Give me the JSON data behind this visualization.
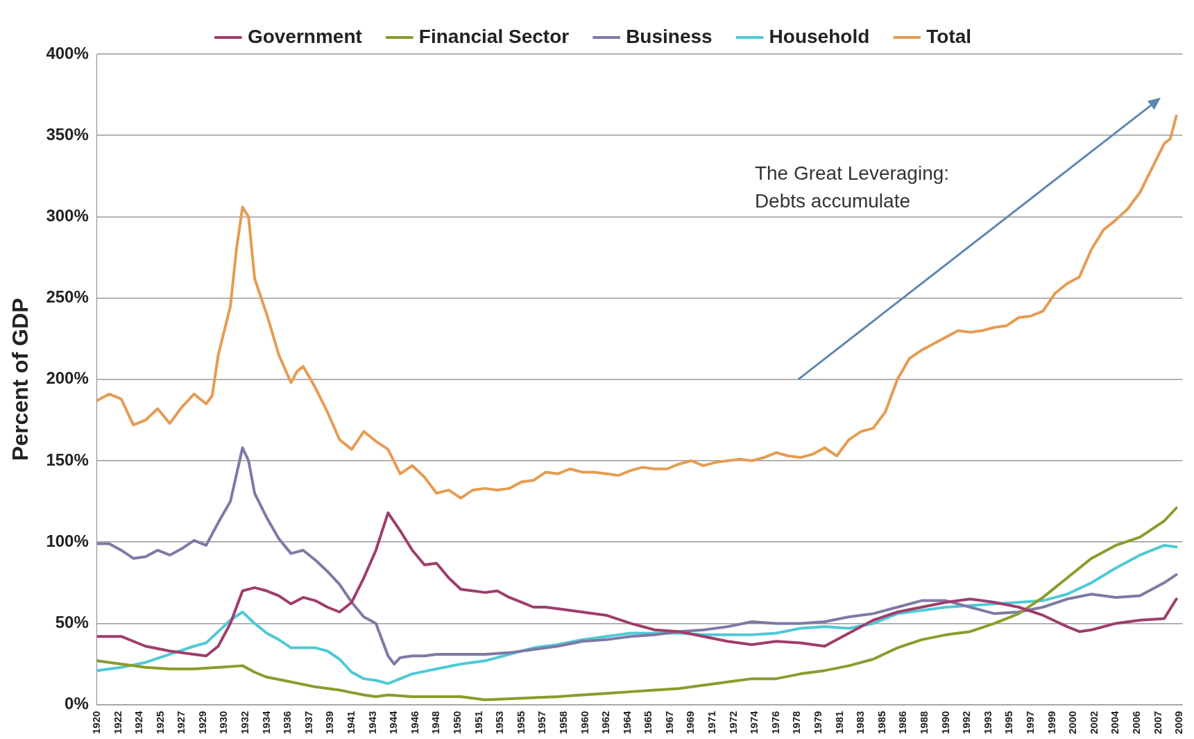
{
  "chart_data": {
    "type": "line",
    "ylabel": "Percent of GDP",
    "legend": "top",
    "grid": "y",
    "annotations": [
      "The Great Leveraging:\nDebts accumulate"
    ],
    "xlim": [
      1920,
      2009.5
    ],
    "xticks": [
      {
        "value": 1920,
        "label": "1920"
      },
      {
        "value": 1921.75,
        "label": "1922"
      },
      {
        "value": 1923.5,
        "label": "1924"
      },
      {
        "value": 1925.25,
        "label": "1925"
      },
      {
        "value": 1927,
        "label": "1927"
      },
      {
        "value": 1928.75,
        "label": "1929"
      },
      {
        "value": 1930.5,
        "label": "1930"
      },
      {
        "value": 1932.25,
        "label": "1932"
      },
      {
        "value": 1934,
        "label": "1934"
      },
      {
        "value": 1935.75,
        "label": "1936"
      },
      {
        "value": 1937.5,
        "label": "1937"
      },
      {
        "value": 1939.25,
        "label": "1939"
      },
      {
        "value": 1941,
        "label": "1941"
      },
      {
        "value": 1942.75,
        "label": "1943"
      },
      {
        "value": 1944.5,
        "label": "1944"
      },
      {
        "value": 1946.25,
        "label": "1946"
      },
      {
        "value": 1948,
        "label": "1948"
      },
      {
        "value": 1949.75,
        "label": "1950"
      },
      {
        "value": 1951.5,
        "label": "1951"
      },
      {
        "value": 1953.25,
        "label": "1953"
      },
      {
        "value": 1955,
        "label": "1955"
      },
      {
        "value": 1956.75,
        "label": "1957"
      },
      {
        "value": 1958.5,
        "label": "1958"
      },
      {
        "value": 1960.25,
        "label": "1960"
      },
      {
        "value": 1962,
        "label": "1962"
      },
      {
        "value": 1963.75,
        "label": "1964"
      },
      {
        "value": 1965.5,
        "label": "1965"
      },
      {
        "value": 1967.25,
        "label": "1967"
      },
      {
        "value": 1969,
        "label": "1969"
      },
      {
        "value": 1970.75,
        "label": "1971"
      },
      {
        "value": 1972.5,
        "label": "1972"
      },
      {
        "value": 1974.25,
        "label": "1974"
      },
      {
        "value": 1976,
        "label": "1976"
      },
      {
        "value": 1977.75,
        "label": "1978"
      },
      {
        "value": 1979.5,
        "label": "1979"
      },
      {
        "value": 1981.25,
        "label": "1981"
      },
      {
        "value": 1983,
        "label": "1983"
      },
      {
        "value": 1984.75,
        "label": "1985"
      },
      {
        "value": 1986.5,
        "label": "1986"
      },
      {
        "value": 1988.25,
        "label": "1988"
      },
      {
        "value": 1990,
        "label": "1990"
      },
      {
        "value": 1991.75,
        "label": "1992"
      },
      {
        "value": 1993.5,
        "label": "1993"
      },
      {
        "value": 1995.25,
        "label": "1995"
      },
      {
        "value": 1997,
        "label": "1997"
      },
      {
        "value": 1998.75,
        "label": "1999"
      },
      {
        "value": 2000.5,
        "label": "2000"
      },
      {
        "value": 2002.25,
        "label": "2002"
      },
      {
        "value": 2004,
        "label": "2004"
      },
      {
        "value": 2005.75,
        "label": "2006"
      },
      {
        "value": 2007.5,
        "label": "2007"
      },
      {
        "value": 2009.25,
        "label": "2009"
      }
    ],
    "ylim": [
      0,
      400
    ],
    "yticks": [
      {
        "value": 0,
        "label": "0%"
      },
      {
        "value": 50,
        "label": "50%"
      },
      {
        "value": 100,
        "label": "100%"
      },
      {
        "value": 150,
        "label": "150%"
      },
      {
        "value": 200,
        "label": "200%"
      },
      {
        "value": 250,
        "label": "250%"
      },
      {
        "value": 300,
        "label": "300%"
      },
      {
        "value": 350,
        "label": "350%"
      },
      {
        "value": 400,
        "label": "400%"
      }
    ],
    "series": [
      {
        "name": "Government",
        "color": "#9e3d6c",
        "x": [
          1920,
          1922,
          1924,
          1926,
          1928,
          1929,
          1930,
          1931,
          1932,
          1933,
          1934,
          1935,
          1936,
          1937,
          1938,
          1939,
          1940,
          1941,
          1942,
          1943,
          1944,
          1945,
          1946,
          1947,
          1948,
          1949,
          1950,
          1951,
          1952,
          1953,
          1954,
          1955,
          1956,
          1957,
          1958,
          1960,
          1962,
          1964,
          1966,
          1968,
          1970,
          1972,
          1974,
          1976,
          1978,
          1980,
          1982,
          1984,
          1986,
          1988,
          1990,
          1992,
          1994,
          1996,
          1998,
          2000,
          2001,
          2002,
          2004,
          2006,
          2008,
          2009
        ],
        "values": [
          42,
          42,
          36,
          33,
          31,
          30,
          36,
          50,
          70,
          72,
          70,
          67,
          62,
          66,
          64,
          60,
          57,
          63,
          78,
          95,
          118,
          107,
          95,
          86,
          87,
          78,
          71,
          70,
          69,
          70,
          66,
          63,
          60,
          60,
          59,
          57,
          55,
          50,
          46,
          45,
          42,
          39,
          37,
          39,
          38,
          36,
          44,
          52,
          57,
          60,
          63,
          65,
          63,
          60,
          55,
          48,
          45,
          46,
          50,
          52,
          53,
          65
        ]
      },
      {
        "name": "Financial Sector",
        "color": "#8c9b2c",
        "x": [
          1920,
          1922,
          1924,
          1926,
          1928,
          1930,
          1932,
          1933,
          1934,
          1936,
          1938,
          1940,
          1942,
          1943,
          1944,
          1946,
          1948,
          1950,
          1951,
          1952,
          1955,
          1958,
          1960,
          1962,
          1964,
          1966,
          1968,
          1970,
          1972,
          1974,
          1976,
          1978,
          1980,
          1982,
          1984,
          1986,
          1988,
          1990,
          1992,
          1994,
          1996,
          1998,
          2000,
          2002,
          2004,
          2006,
          2008,
          2009
        ],
        "values": [
          27,
          25,
          23,
          22,
          22,
          23,
          24,
          20,
          17,
          14,
          11,
          9,
          6,
          5,
          6,
          5,
          5,
          5,
          4,
          3,
          4,
          5,
          6,
          7,
          8,
          9,
          10,
          12,
          14,
          16,
          16,
          19,
          21,
          24,
          28,
          35,
          40,
          43,
          45,
          50,
          56,
          66,
          78,
          90,
          98,
          103,
          113,
          121
        ]
      },
      {
        "name": "Business",
        "color": "#7c7aa5",
        "x": [
          1920,
          1921,
          1922,
          1923,
          1924,
          1925,
          1926,
          1927,
          1928,
          1929,
          1930,
          1931,
          1932,
          1932.5,
          1933,
          1934,
          1935,
          1936,
          1937,
          1938,
          1939,
          1940,
          1941,
          1942,
          1943,
          1944,
          1944.5,
          1945,
          1946,
          1947,
          1948,
          1950,
          1952,
          1954,
          1956,
          1958,
          1960,
          1962,
          1964,
          1966,
          1968,
          1970,
          1972,
          1974,
          1976,
          1978,
          1980,
          1982,
          1984,
          1986,
          1988,
          1990,
          1992,
          1994,
          1996,
          1998,
          2000,
          2002,
          2004,
          2006,
          2008,
          2009
        ],
        "values": [
          99,
          99,
          95,
          90,
          91,
          95,
          92,
          96,
          101,
          98,
          112,
          125,
          158,
          150,
          130,
          115,
          102,
          93,
          95,
          89,
          82,
          74,
          63,
          54,
          50,
          30,
          25,
          29,
          30,
          30,
          31,
          31,
          31,
          32,
          34,
          36,
          39,
          40,
          42,
          43,
          45,
          46,
          48,
          51,
          50,
          50,
          51,
          54,
          56,
          60,
          64,
          64,
          60,
          56,
          57,
          60,
          65,
          68,
          66,
          67,
          75,
          80
        ]
      },
      {
        "name": "Household",
        "color": "#4fc9d6",
        "x": [
          1920,
          1922,
          1924,
          1926,
          1928,
          1929,
          1930,
          1931,
          1932,
          1933,
          1934,
          1935,
          1936,
          1937,
          1938,
          1939,
          1940,
          1941,
          1942,
          1943,
          1944,
          1945,
          1946,
          1948,
          1950,
          1952,
          1954,
          1956,
          1958,
          1960,
          1962,
          1964,
          1966,
          1968,
          1970,
          1972,
          1974,
          1976,
          1978,
          1980,
          1982,
          1984,
          1986,
          1988,
          1990,
          1992,
          1994,
          1996,
          1998,
          2000,
          2002,
          2004,
          2006,
          2008,
          2009
        ],
        "values": [
          21,
          23,
          26,
          31,
          36,
          38,
          45,
          52,
          57,
          50,
          44,
          40,
          35,
          35,
          35,
          33,
          28,
          20,
          16,
          15,
          13,
          16,
          19,
          22,
          25,
          27,
          31,
          35,
          37,
          40,
          42,
          44,
          44,
          44,
          43,
          43,
          43,
          44,
          47,
          48,
          47,
          50,
          56,
          58,
          60,
          61,
          62,
          63,
          64,
          68,
          75,
          84,
          92,
          98,
          97
        ]
      },
      {
        "name": "Total",
        "color": "#e59c52",
        "x": [
          1920,
          1921,
          1922,
          1923,
          1924,
          1925,
          1926,
          1927,
          1928,
          1929,
          1929.5,
          1930,
          1931,
          1931.5,
          1932,
          1932.5,
          1933,
          1934,
          1935,
          1936,
          1936.5,
          1937,
          1938,
          1939,
          1940,
          1941,
          1942,
          1943,
          1944,
          1945,
          1946,
          1947,
          1948,
          1949,
          1950,
          1951,
          1952,
          1953,
          1954,
          1955,
          1956,
          1957,
          1958,
          1959,
          1960,
          1961,
          1962,
          1963,
          1964,
          1965,
          1966,
          1967,
          1968,
          1969,
          1970,
          1971,
          1972,
          1973,
          1974,
          1975,
          1976,
          1977,
          1978,
          1979,
          1980,
          1981,
          1982,
          1983,
          1984,
          1985,
          1986,
          1987,
          1988,
          1989,
          1990,
          1991,
          1992,
          1993,
          1994,
          1995,
          1996,
          1997,
          1998,
          1999,
          2000,
          2001,
          2002,
          2003,
          2004,
          2005,
          2006,
          2007,
          2008,
          2008.5,
          2009
        ],
        "values": [
          187,
          191,
          188,
          172,
          175,
          182,
          173,
          183,
          191,
          185,
          190,
          215,
          245,
          280,
          306,
          300,
          262,
          240,
          215,
          198,
          205,
          208,
          195,
          180,
          163,
          157,
          168,
          162,
          157,
          142,
          147,
          140,
          130,
          132,
          127,
          132,
          133,
          132,
          133,
          137,
          138,
          143,
          142,
          145,
          143,
          143,
          142,
          141,
          144,
          146,
          145,
          145,
          148,
          150,
          147,
          149,
          150,
          151,
          150,
          152,
          155,
          153,
          152,
          154,
          158,
          153,
          163,
          168,
          170,
          180,
          200,
          213,
          218,
          222,
          226,
          230,
          229,
          230,
          232,
          233,
          238,
          239,
          242,
          253,
          259,
          263,
          280,
          292,
          298,
          305,
          315,
          330,
          345,
          348,
          362
        ]
      }
    ]
  }
}
